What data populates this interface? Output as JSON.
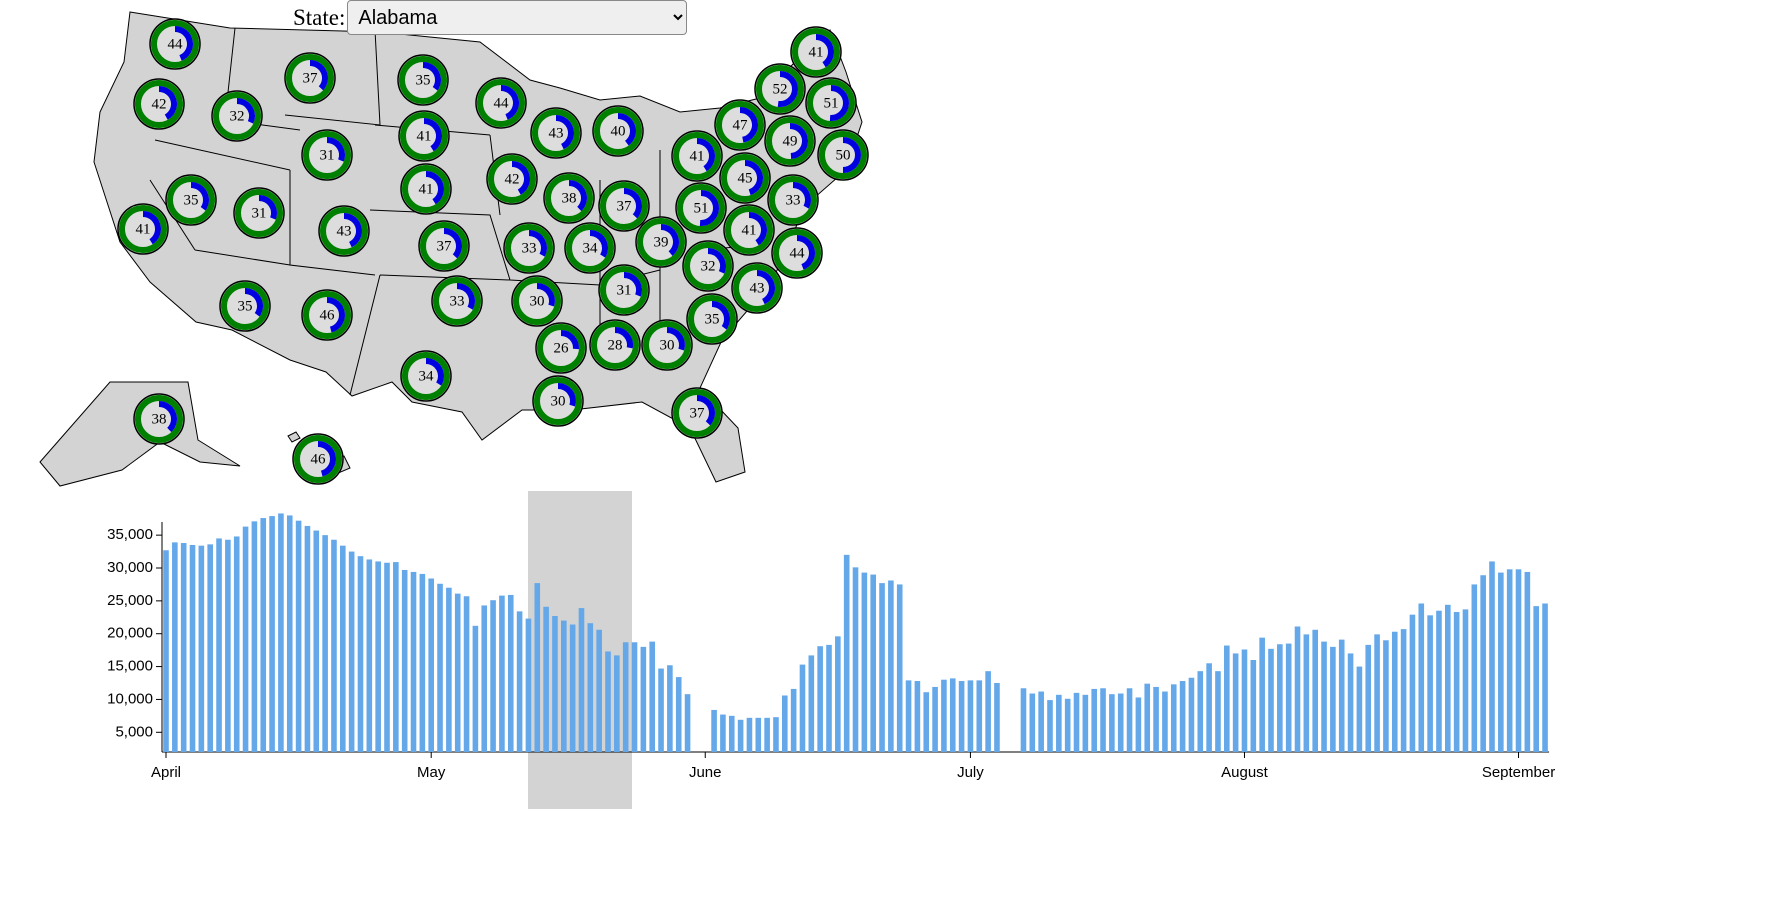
{
  "controls": {
    "label": "State:",
    "selected": "Alabama"
  },
  "chart_data": [
    {
      "type": "donut-map",
      "values": [
        44,
        37,
        35,
        44,
        42,
        32,
        43,
        40,
        41,
        31,
        41,
        47,
        52,
        41,
        51,
        49,
        50,
        45,
        33,
        42,
        41,
        35,
        31,
        43,
        41,
        38,
        37,
        51,
        41,
        39,
        33,
        34,
        37,
        32,
        44,
        43,
        31,
        30,
        33,
        35,
        46,
        35,
        26,
        28,
        30,
        34,
        30,
        37,
        38,
        46
      ],
      "colors": {
        "ring": "#008000",
        "arc": "#0000e0"
      }
    },
    {
      "type": "bar",
      "categories": [
        "April",
        null,
        null,
        null,
        null,
        null,
        null,
        null,
        null,
        null,
        null,
        null,
        null,
        null,
        null,
        null,
        null,
        null,
        null,
        null,
        null,
        null,
        null,
        null,
        null,
        null,
        null,
        null,
        null,
        null,
        "May",
        null,
        null,
        null,
        null,
        null,
        null,
        null,
        null,
        null,
        null,
        null,
        null,
        null,
        null,
        null,
        null,
        null,
        null,
        null,
        null,
        null,
        null,
        null,
        null,
        null,
        null,
        null,
        null,
        null,
        null,
        "June",
        null,
        null,
        null,
        null,
        null,
        null,
        null,
        null,
        null,
        null,
        null,
        null,
        null,
        null,
        null,
        null,
        null,
        null,
        null,
        null,
        null,
        null,
        null,
        null,
        null,
        null,
        null,
        null,
        null,
        "July",
        null,
        null,
        null,
        null,
        null,
        null,
        null,
        null,
        null,
        null,
        null,
        null,
        null,
        null,
        null,
        null,
        null,
        null,
        null,
        null,
        null,
        null,
        null,
        null,
        null,
        null,
        null,
        null,
        null,
        null,
        "August",
        null,
        null,
        null,
        null,
        null,
        null,
        null,
        null,
        null,
        null,
        null,
        null,
        null,
        null,
        null,
        null,
        null,
        null,
        null,
        null,
        null,
        null,
        null,
        null,
        null,
        null,
        null,
        null,
        null,
        null,
        "September",
        null,
        null,
        null
      ],
      "values": [
        32700,
        33900,
        33800,
        33500,
        33400,
        33600,
        34500,
        34300,
        34800,
        36300,
        37100,
        37600,
        37900,
        38300,
        38000,
        37200,
        36400,
        35700,
        35000,
        34300,
        33400,
        32500,
        31800,
        31300,
        31000,
        30800,
        30900,
        29700,
        29400,
        29100,
        28400,
        27600,
        27000,
        26100,
        25700,
        21200,
        24300,
        25100,
        25800,
        25900,
        23400,
        22300,
        27700,
        24100,
        22700,
        22000,
        21400,
        23900,
        21600,
        20600,
        17300,
        16700,
        18700,
        18700,
        18000,
        18800,
        14700,
        15200,
        13400,
        10800,
        null,
        null,
        8400,
        7700,
        7500,
        6900,
        7200,
        7200,
        7200,
        7300,
        10600,
        11600,
        15300,
        16700,
        18100,
        18300,
        19600,
        32000,
        30100,
        29300,
        29000,
        27700,
        28100,
        27500,
        12900,
        12800,
        11100,
        11900,
        13000,
        13200,
        12800,
        12900,
        12900,
        14300,
        12500,
        null,
        null,
        11700,
        10900,
        11200,
        9900,
        10700,
        10100,
        11000,
        10700,
        11600,
        11700,
        10800,
        10900,
        11700,
        10300,
        12400,
        11900,
        11200,
        12300,
        12800,
        13300,
        14300,
        15500,
        14300,
        18200,
        17000,
        17600,
        16000,
        19400,
        17700,
        18400,
        18500,
        21100,
        19900,
        20600,
        18800,
        18000,
        19100,
        17000,
        15000,
        18300,
        19900,
        19000,
        20300,
        20700,
        22900,
        24600,
        22800,
        23500,
        24400,
        23300,
        23700,
        27500,
        28900,
        31000,
        29300,
        29800,
        29800,
        29400,
        24200,
        24600
      ],
      "color": "#64a8ea",
      "ylim": [
        2000,
        37000
      ],
      "yticks": [
        {
          "value": 5000,
          "label": "5,000"
        },
        {
          "value": 10000,
          "label": "10,000"
        },
        {
          "value": 15000,
          "label": "15,000"
        },
        {
          "value": 20000,
          "label": "20,000"
        },
        {
          "value": 25000,
          "label": "25,000"
        },
        {
          "value": 30000,
          "label": "30,000"
        },
        {
          "value": 35000,
          "label": "35,000"
        }
      ]
    }
  ]
}
